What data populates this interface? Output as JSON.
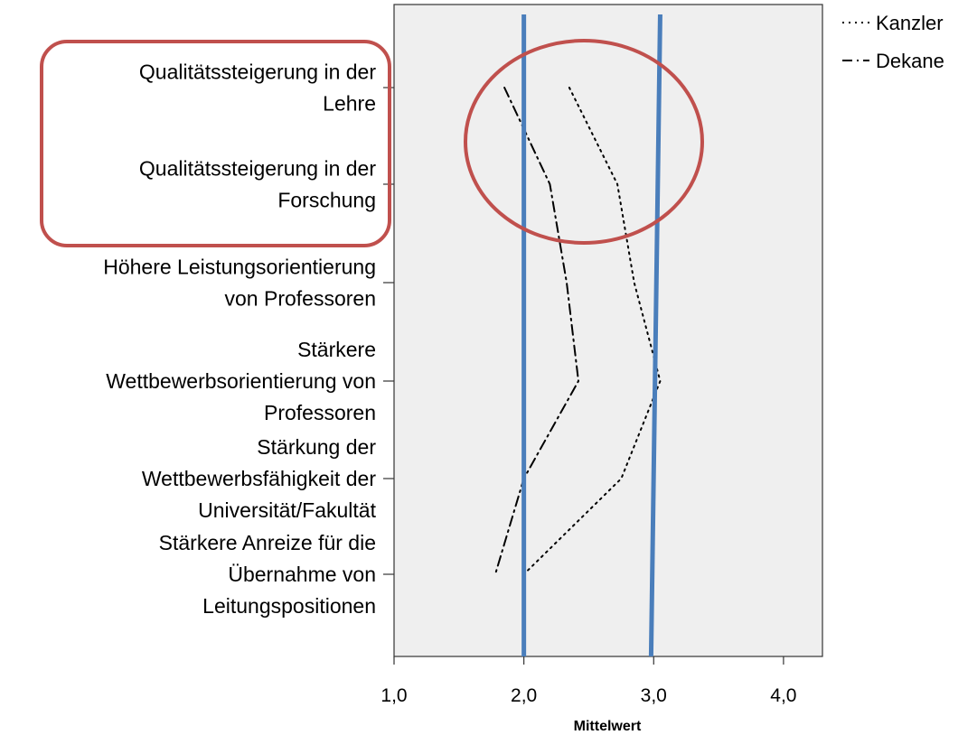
{
  "colors": {
    "plot_background": "#efefef",
    "reference_lines": "#4a7ebb",
    "highlight": "#c0504d",
    "series": "#000000"
  },
  "chart_data": {
    "type": "line",
    "orientation": "horizontal",
    "categories": [
      [
        "Qualitätssteigerung in der",
        "Lehre"
      ],
      [
        "Qualitätssteigerung in der",
        "Forschung"
      ],
      [
        "Höhere Leistungsorientierung",
        "von Professoren"
      ],
      [
        "Stärkere",
        "Wettbewerbsorientierung von",
        "Professoren"
      ],
      [
        "Stärkung der",
        "Wettbewerbsfähigkeit der",
        "Universität/Fakultät"
      ],
      [
        "Stärkere Anreize für die",
        "Übernahme von",
        "Leitungspositionen"
      ]
    ],
    "series": [
      {
        "name": "Kanzler",
        "style": "dotted",
        "values": [
          2.35,
          2.72,
          2.85,
          3.05,
          2.75,
          2.0
        ]
      },
      {
        "name": "Dekane",
        "style": "dash-dot",
        "values": [
          1.85,
          2.2,
          2.33,
          2.42,
          2.0,
          1.78
        ]
      }
    ],
    "xlabel": "Mittelwert",
    "xlim": [
      1.0,
      4.3
    ],
    "xticks": [
      1.0,
      2.0,
      3.0,
      4.0
    ],
    "xtick_labels": [
      "1,0",
      "2,0",
      "3,0",
      "4,0"
    ],
    "reference_lines": [
      {
        "from": 2.0,
        "to": 2.0
      },
      {
        "from": 3.05,
        "to": 2.98
      }
    ],
    "highlights": [
      {
        "shape": "rounded-rectangle",
        "around": "category-labels",
        "categories": [
          0,
          1
        ]
      },
      {
        "shape": "ellipse",
        "around": "data-lines",
        "categories": [
          0,
          1
        ]
      }
    ],
    "legend": {
      "position": "top-right",
      "entries": [
        "Kanzler",
        "Dekane"
      ]
    },
    "grid": false
  }
}
